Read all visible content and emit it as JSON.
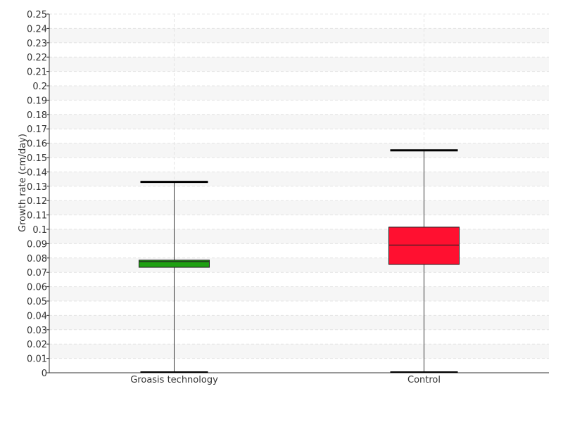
{
  "chart_data": {
    "type": "boxplot",
    "title": "",
    "xlabel": "",
    "ylabel": "Growth rate (cm/day)",
    "ylim": [
      0,
      0.25
    ],
    "ytick_step": 0.01,
    "yticks": [
      "0",
      "0.01",
      "0.02",
      "0.03",
      "0.04",
      "0.05",
      "0.06",
      "0.07",
      "0.08",
      "0.09",
      "0.1",
      "0.11",
      "0.12",
      "0.13",
      "0.14",
      "0.15",
      "0.16",
      "0.17",
      "0.18",
      "0.19",
      "0.2",
      "0.21",
      "0.22",
      "0.23",
      "0.24",
      "0.25"
    ],
    "grid": true,
    "legend": "none",
    "categories": [
      "Groasis technology",
      "Control"
    ],
    "boxes": [
      {
        "category": "Groasis technology",
        "min": 0.0,
        "q1": 0.0735,
        "median": 0.0775,
        "q3": 0.0785,
        "max": 0.133,
        "color": "#1fa012"
      },
      {
        "category": "Control",
        "min": 0.0,
        "q1": 0.0755,
        "median": 0.089,
        "q3": 0.1015,
        "max": 0.155,
        "color": "#ff1030"
      }
    ]
  }
}
